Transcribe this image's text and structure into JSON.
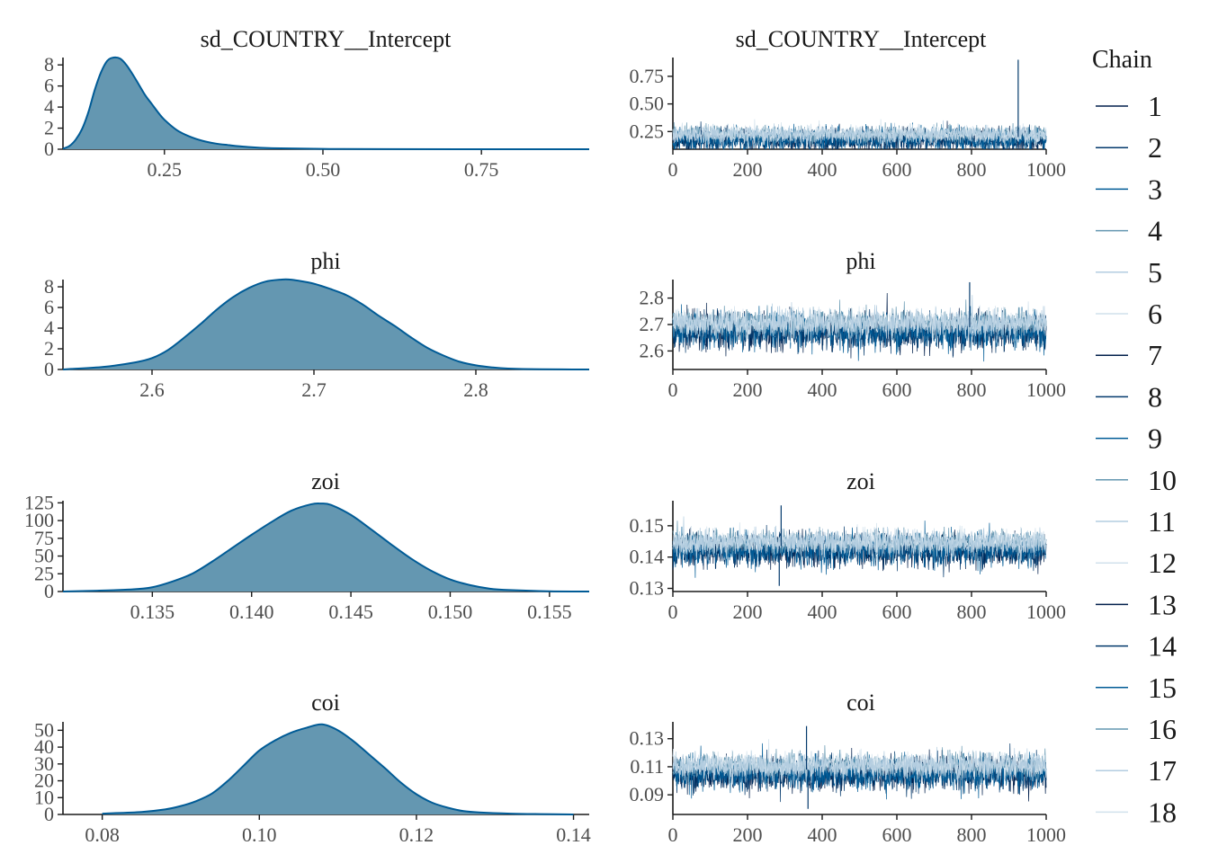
{
  "colors": {
    "density_fill": "#6497b1",
    "density_line": "#005b96",
    "chain_colors": [
      "#011f4b",
      "#03396c",
      "#005b96",
      "#6497b1",
      "#b3cde0",
      "#d1e1ec"
    ],
    "axis": "#1a1a1a"
  },
  "legend": {
    "title": "Chain",
    "position": "right",
    "items": [
      "1",
      "2",
      "3",
      "4",
      "5",
      "6",
      "7",
      "8",
      "9",
      "10",
      "11",
      "12",
      "13",
      "14",
      "15",
      "16",
      "17",
      "18"
    ]
  },
  "chart_data": [
    {
      "type": "area",
      "title": "sd_COUNTRY__Intercept",
      "xlim": [
        0.09,
        0.92
      ],
      "ylim": [
        0,
        8.7
      ],
      "xticks": [
        0.25,
        0.5,
        0.75
      ],
      "xtick_labels": [
        "0.25",
        "0.50",
        "0.75"
      ],
      "yticks": [
        0,
        2,
        4,
        6,
        8
      ],
      "ytick_labels": [
        "0",
        "2",
        "4",
        "6",
        "8"
      ],
      "x": [
        0.09,
        0.1,
        0.11,
        0.12,
        0.13,
        0.14,
        0.15,
        0.16,
        0.17,
        0.18,
        0.19,
        0.2,
        0.21,
        0.22,
        0.23,
        0.24,
        0.25,
        0.27,
        0.29,
        0.31,
        0.33,
        0.35,
        0.38,
        0.42,
        0.5,
        0.6,
        0.75,
        0.92
      ],
      "values": [
        0.05,
        0.3,
        0.9,
        1.9,
        3.5,
        5.6,
        7.3,
        8.4,
        8.7,
        8.6,
        8.0,
        7.1,
        6.1,
        5.1,
        4.3,
        3.5,
        2.8,
        1.8,
        1.2,
        0.8,
        0.55,
        0.4,
        0.22,
        0.1,
        0.03,
        0.01,
        0.0,
        0.0
      ]
    },
    {
      "type": "line",
      "title": "sd_COUNTRY__Intercept",
      "xlim": [
        0,
        1000
      ],
      "ylim": [
        0.09,
        0.92
      ],
      "xticks": [
        0,
        200,
        400,
        600,
        800,
        1000
      ],
      "xtick_labels": [
        "0",
        "200",
        "400",
        "600",
        "800",
        "1000"
      ],
      "yticks": [
        0.25,
        0.5,
        0.75
      ],
      "ytick_labels": [
        "0.25",
        "0.50",
        "0.75"
      ],
      "center": 0.2,
      "spread": 0.07,
      "lower": 0.09,
      "upper": 0.55,
      "n_iter": 1000,
      "spikes": [
        {
          "x": 925,
          "y": 0.9
        }
      ]
    },
    {
      "type": "area",
      "title": "phi",
      "xlim": [
        2.545,
        2.87
      ],
      "ylim": [
        0,
        8.7
      ],
      "xticks": [
        2.6,
        2.7,
        2.8
      ],
      "xtick_labels": [
        "2.6",
        "2.7",
        "2.8"
      ],
      "yticks": [
        0,
        2,
        4,
        6,
        8
      ],
      "ytick_labels": [
        "0",
        "2",
        "4",
        "6",
        "8"
      ],
      "x": [
        2.545,
        2.55,
        2.57,
        2.59,
        2.6,
        2.61,
        2.62,
        2.63,
        2.64,
        2.65,
        2.66,
        2.67,
        2.68,
        2.685,
        2.69,
        2.7,
        2.71,
        2.72,
        2.73,
        2.74,
        2.75,
        2.76,
        2.77,
        2.78,
        2.79,
        2.8,
        2.81,
        2.82,
        2.84,
        2.87
      ],
      "values": [
        0.0,
        0.05,
        0.25,
        0.7,
        1.1,
        1.9,
        3.1,
        4.4,
        5.8,
        7.0,
        7.9,
        8.5,
        8.7,
        8.7,
        8.6,
        8.3,
        7.8,
        7.2,
        6.3,
        5.2,
        4.2,
        3.1,
        2.1,
        1.35,
        0.75,
        0.4,
        0.2,
        0.09,
        0.02,
        0.0
      ]
    },
    {
      "type": "line",
      "title": "phi",
      "xlim": [
        0,
        1000
      ],
      "ylim": [
        2.53,
        2.87
      ],
      "xticks": [
        0,
        200,
        400,
        600,
        800,
        1000
      ],
      "xtick_labels": [
        "0",
        "200",
        "400",
        "600",
        "800",
        "1000"
      ],
      "yticks": [
        2.6,
        2.7,
        2.8
      ],
      "ytick_labels": [
        "2.6",
        "2.7",
        "2.8"
      ],
      "center": 2.69,
      "spread": 0.045,
      "lower": 2.54,
      "upper": 2.86,
      "n_iter": 1000,
      "spikes": [
        {
          "x": 795,
          "y": 2.86
        }
      ]
    },
    {
      "type": "area",
      "title": "zoi",
      "xlim": [
        0.1305,
        0.157
      ],
      "ylim": [
        0,
        128
      ],
      "xticks": [
        0.135,
        0.14,
        0.145,
        0.15,
        0.155
      ],
      "xtick_labels": [
        "0.135",
        "0.140",
        "0.145",
        "0.150",
        "0.155"
      ],
      "yticks": [
        0,
        25,
        50,
        75,
        100,
        125
      ],
      "ytick_labels": [
        "0",
        "25",
        "50",
        "75",
        "100",
        "125"
      ],
      "x": [
        0.1305,
        0.132,
        0.134,
        0.135,
        0.136,
        0.137,
        0.138,
        0.139,
        0.14,
        0.141,
        0.142,
        0.143,
        0.1435,
        0.144,
        0.145,
        0.146,
        0.147,
        0.148,
        0.149,
        0.15,
        0.151,
        0.152,
        0.153,
        0.155,
        0.157
      ],
      "values": [
        0.0,
        1.0,
        3.0,
        6.0,
        14.0,
        25.0,
        42.0,
        61.0,
        80.0,
        98.0,
        114.0,
        123.0,
        124.0,
        122.0,
        108.0,
        88.0,
        67.0,
        47.0,
        30.0,
        17.0,
        9.0,
        4.0,
        2.0,
        0.3,
        0.0
      ]
    },
    {
      "type": "line",
      "title": "zoi",
      "xlim": [
        0,
        1000
      ],
      "ylim": [
        0.129,
        0.158
      ],
      "xticks": [
        0,
        200,
        400,
        600,
        800,
        1000
      ],
      "xtick_labels": [
        "0",
        "200",
        "400",
        "600",
        "800",
        "1000"
      ],
      "yticks": [
        0.13,
        0.14,
        0.15
      ],
      "ytick_labels": [
        "0.13",
        "0.14",
        "0.15"
      ],
      "center": 0.1435,
      "spread": 0.0035,
      "lower": 0.1305,
      "upper": 0.157,
      "n_iter": 1000,
      "spikes": [
        {
          "x": 290,
          "y": 0.1565
        },
        {
          "x": 285,
          "y": 0.1308
        }
      ]
    },
    {
      "type": "area",
      "title": "coi",
      "xlim": [
        0.075,
        0.142
      ],
      "ylim": [
        0,
        55
      ],
      "xticks": [
        0.08,
        0.1,
        0.12,
        0.14
      ],
      "xtick_labels": [
        "0.08",
        "0.10",
        "0.12",
        "0.14"
      ],
      "yticks": [
        0,
        10,
        20,
        30,
        40,
        50
      ],
      "ytick_labels": [
        "0",
        "10",
        "20",
        "30",
        "40",
        "50"
      ],
      "x": [
        0.08,
        0.085,
        0.088,
        0.09,
        0.092,
        0.094,
        0.096,
        0.098,
        0.1,
        0.102,
        0.104,
        0.106,
        0.108,
        0.11,
        0.112,
        0.114,
        0.116,
        0.118,
        0.12,
        0.122,
        0.124,
        0.126,
        0.128,
        0.132,
        0.136,
        0.14
      ],
      "values": [
        0.5,
        1.5,
        3.0,
        5.0,
        8.0,
        12.5,
        20.0,
        29.0,
        38.0,
        44.0,
        48.5,
        51.5,
        53.5,
        50.0,
        43.5,
        35.5,
        27.5,
        19.0,
        12.0,
        7.0,
        4.0,
        2.0,
        1.2,
        0.5,
        0.2,
        0.0
      ]
    },
    {
      "type": "line",
      "title": "coi",
      "xlim": [
        0,
        1000
      ],
      "ylim": [
        0.076,
        0.142
      ],
      "xticks": [
        0,
        200,
        400,
        600,
        800,
        1000
      ],
      "xtick_labels": [
        "0",
        "200",
        "400",
        "600",
        "800",
        "1000"
      ],
      "yticks": [
        0.09,
        0.11,
        0.13
      ],
      "ytick_labels": [
        "0.09",
        "0.11",
        "0.13"
      ],
      "center": 0.108,
      "spread": 0.008,
      "lower": 0.08,
      "upper": 0.139,
      "n_iter": 1000,
      "spikes": [
        {
          "x": 358,
          "y": 0.139
        },
        {
          "x": 362,
          "y": 0.08
        }
      ]
    }
  ]
}
